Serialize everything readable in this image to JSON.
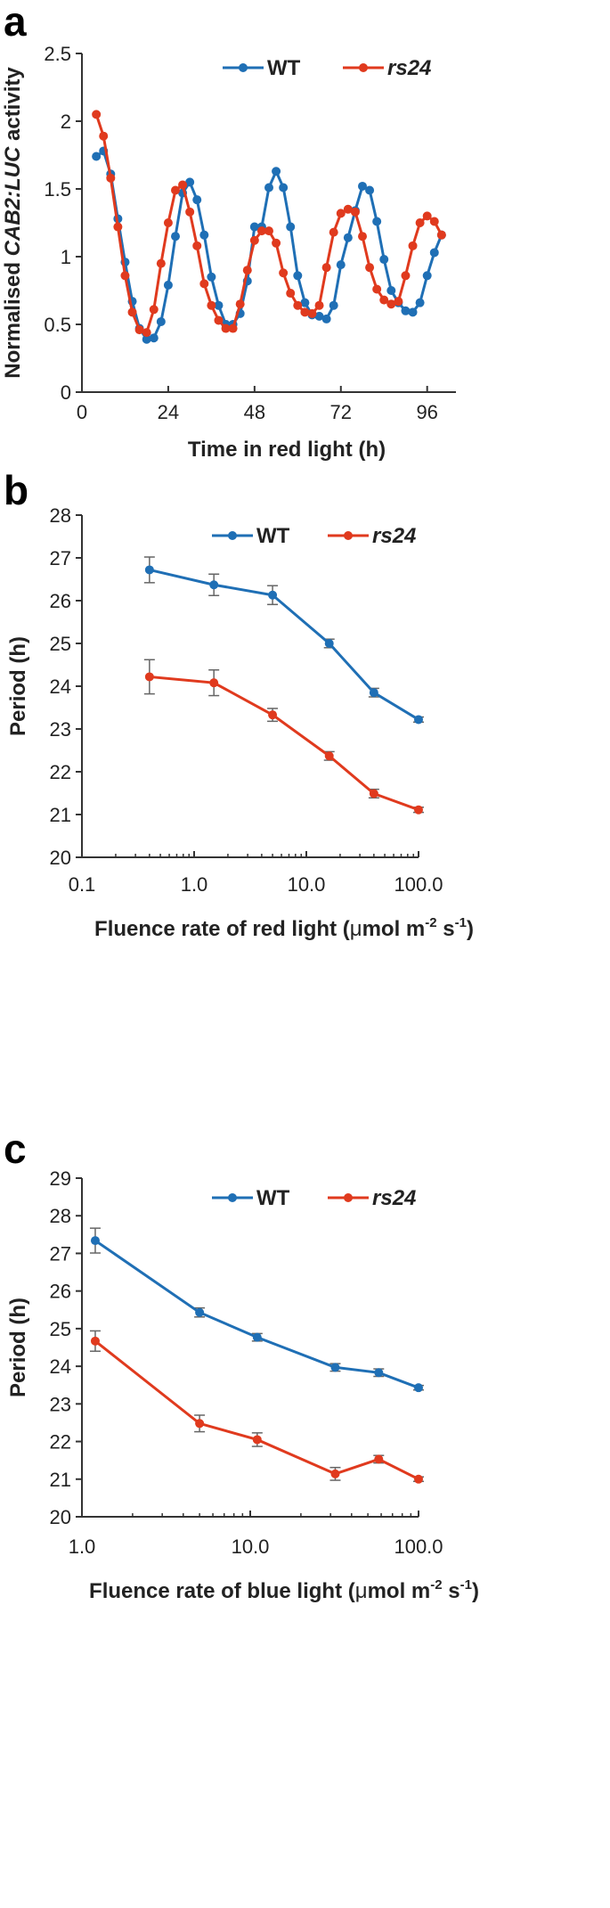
{
  "colors": {
    "wt": "#1f6fb5",
    "rs24": "#e03a1e",
    "axis": "#333333",
    "text": "#222222",
    "error": "#666666"
  },
  "chart_data": [
    {
      "panel": "a",
      "type": "line",
      "xlabel": "Time in red light (h)",
      "ylabel_parts": [
        "Normalised ",
        "CAB2:LUC",
        " activity"
      ],
      "xlim": [
        0,
        104
      ],
      "ylim": [
        0,
        2.5
      ],
      "xticks": [
        0,
        24,
        48,
        72,
        96
      ],
      "xtick_labels": [
        "0",
        "24",
        "48",
        "72",
        "96"
      ],
      "yticks": [
        0,
        0.5,
        1,
        1.5,
        2,
        2.5
      ],
      "ytick_labels": [
        "0",
        "0.5",
        "1",
        "1.5",
        "2",
        "2.5"
      ],
      "legend": {
        "position": "top-right",
        "entries": [
          "WT",
          "rs24"
        ]
      },
      "series": [
        {
          "name": "WT",
          "key": "wt",
          "x": [
            4,
            6,
            8,
            10,
            12,
            14,
            16,
            18,
            20,
            22,
            24,
            26,
            28,
            30,
            32,
            34,
            36,
            38,
            40,
            42,
            44,
            46,
            48,
            50,
            52,
            54,
            56,
            58,
            60,
            62,
            64,
            66,
            68,
            70,
            72,
            74,
            76,
            78,
            80,
            82,
            84,
            86,
            88,
            90,
            92,
            94,
            96,
            98,
            100
          ],
          "y": [
            1.74,
            1.78,
            1.61,
            1.28,
            0.96,
            0.67,
            0.47,
            0.39,
            0.4,
            0.52,
            0.79,
            1.15,
            1.47,
            1.55,
            1.42,
            1.16,
            0.85,
            0.64,
            0.5,
            0.5,
            0.58,
            0.82,
            1.22,
            1.22,
            1.51,
            1.63,
            1.51,
            1.22,
            0.86,
            0.66,
            0.57,
            0.56,
            0.54,
            0.64,
            0.94,
            1.14,
            1.34,
            1.52,
            1.49,
            1.26,
            0.98,
            0.75,
            0.66,
            0.6,
            0.59,
            0.66,
            0.86,
            1.03,
            1.16
          ]
        },
        {
          "name": "rs24",
          "key": "rs24",
          "x": [
            4,
            6,
            8,
            10,
            12,
            14,
            16,
            18,
            20,
            22,
            24,
            26,
            28,
            30,
            32,
            34,
            36,
            38,
            40,
            42,
            44,
            46,
            48,
            50,
            52,
            54,
            56,
            58,
            60,
            62,
            64,
            66,
            68,
            70,
            72,
            74,
            76,
            78,
            80,
            82,
            84,
            86,
            88,
            90,
            92,
            94,
            96,
            98,
            100
          ],
          "y": [
            2.05,
            1.89,
            1.58,
            1.22,
            0.86,
            0.59,
            0.46,
            0.44,
            0.61,
            0.95,
            1.25,
            1.49,
            1.53,
            1.33,
            1.08,
            0.8,
            0.64,
            0.53,
            0.47,
            0.47,
            0.65,
            0.9,
            1.12,
            1.19,
            1.19,
            1.1,
            0.88,
            0.73,
            0.64,
            0.59,
            0.58,
            0.64,
            0.92,
            1.18,
            1.32,
            1.35,
            1.33,
            1.15,
            0.92,
            0.76,
            0.68,
            0.65,
            0.67,
            0.86,
            1.08,
            1.25,
            1.3,
            1.26,
            1.16
          ]
        }
      ]
    },
    {
      "panel": "b",
      "type": "line",
      "xscale": "log",
      "xlabel_parts": [
        "Fluence rate of red light (",
        "μ",
        "mol m",
        "-2",
        " s",
        "-1",
        ")"
      ],
      "ylabel": "Period (h)",
      "xlim": [
        0.1,
        100
      ],
      "ylim": [
        20,
        28
      ],
      "xticks": [
        0.1,
        1,
        10,
        100
      ],
      "xtick_labels": [
        "0.1",
        "1.0",
        "10.0",
        "100.0"
      ],
      "yticks": [
        20,
        21,
        22,
        23,
        24,
        25,
        26,
        27,
        28
      ],
      "ytick_labels": [
        "20",
        "21",
        "22",
        "23",
        "24",
        "25",
        "26",
        "27",
        "28"
      ],
      "legend": {
        "position": "top-right",
        "entries": [
          "WT",
          "rs24"
        ]
      },
      "series": [
        {
          "name": "WT",
          "key": "wt",
          "x": [
            0.4,
            1.5,
            5,
            16,
            40,
            100
          ],
          "y": [
            26.72,
            26.37,
            26.13,
            25.0,
            23.85,
            23.22
          ],
          "err": [
            0.3,
            0.25,
            0.22,
            0.1,
            0.1,
            0.06
          ]
        },
        {
          "name": "rs24",
          "key": "rs24",
          "x": [
            0.4,
            1.5,
            5,
            16,
            40,
            100
          ],
          "y": [
            24.22,
            24.08,
            23.33,
            22.37,
            21.49,
            21.11
          ],
          "err": [
            0.4,
            0.3,
            0.15,
            0.1,
            0.1,
            0.06
          ]
        }
      ]
    },
    {
      "panel": "c",
      "type": "line",
      "xscale": "log",
      "xlabel_parts": [
        "Fluence rate of blue light (",
        "μ",
        "mol m",
        "-2",
        " s",
        "-1",
        ")"
      ],
      "ylabel": "Period (h)",
      "xlim": [
        1,
        100
      ],
      "ylim": [
        20,
        29
      ],
      "xticks": [
        1,
        10,
        100
      ],
      "xtick_labels": [
        "1.0",
        "10.0",
        "100.0"
      ],
      "yticks": [
        20,
        21,
        22,
        23,
        24,
        25,
        26,
        27,
        28,
        29
      ],
      "ytick_labels": [
        "20",
        "21",
        "22",
        "23",
        "24",
        "25",
        "26",
        "27",
        "28",
        "29"
      ],
      "legend": {
        "position": "top-right",
        "entries": [
          "WT",
          "rs24"
        ]
      },
      "series": [
        {
          "name": "WT",
          "key": "wt",
          "x": [
            1.2,
            5,
            11,
            32,
            58,
            100
          ],
          "y": [
            27.34,
            25.43,
            24.77,
            23.97,
            23.83,
            23.43
          ],
          "err": [
            0.33,
            0.12,
            0.1,
            0.1,
            0.1,
            0.06
          ]
        },
        {
          "name": "rs24",
          "key": "rs24",
          "x": [
            1.2,
            5,
            11,
            32,
            58,
            100
          ],
          "y": [
            24.67,
            22.48,
            22.05,
            21.14,
            21.53,
            21.0
          ],
          "err": [
            0.27,
            0.22,
            0.18,
            0.17,
            0.1,
            0.06
          ]
        }
      ]
    }
  ]
}
